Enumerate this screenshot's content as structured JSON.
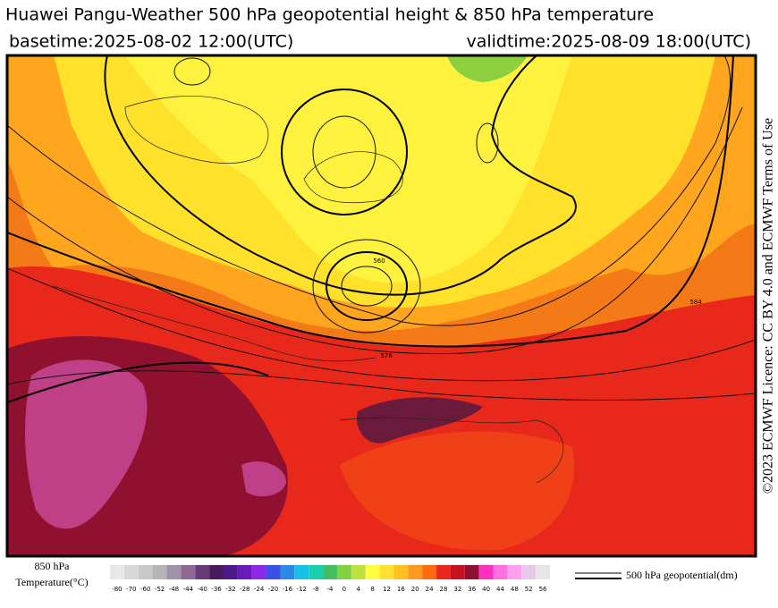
{
  "header": {
    "title": "Huawei Pangu-Weather 500 hPa geopotential height & 850 hPa temperature",
    "basetime": "basetime:2025-08-02 12:00(UTC)",
    "validtime": "validtime:2025-08-09 18:00(UTC)"
  },
  "credit": "©2023 ECMWF Licence: CC BY 4.0 and ECMWF Terms of Use",
  "map": {
    "contour_labels": [
      "560",
      "576",
      "584"
    ]
  },
  "colorbar": {
    "title_line1": "850 hPa",
    "title_line2": "Temperature(°C)",
    "ticks": [
      -80,
      -70,
      -60,
      -52,
      -48,
      -44,
      -40,
      -36,
      -32,
      -28,
      -24,
      -20,
      -16,
      -12,
      -8,
      -4,
      0,
      4,
      8,
      12,
      16,
      20,
      24,
      28,
      32,
      36,
      40,
      44,
      48,
      52,
      56
    ],
    "colors": [
      "#e8e8e8",
      "#d8d8d8",
      "#c8c8c8",
      "#b4b4b4",
      "#a090a8",
      "#8c6a94",
      "#6a3a78",
      "#4a1a5e",
      "#4a1a8a",
      "#6a1ab8",
      "#8a2ae6",
      "#3a50e6",
      "#2a8ae6",
      "#18c0e6",
      "#18d0b0",
      "#40c060",
      "#80d040",
      "#c0e040",
      "#ffff40",
      "#ffe030",
      "#ffc020",
      "#ff9a20",
      "#ff6a10",
      "#e8281a",
      "#c81020",
      "#901030",
      "#ff30c0",
      "#ff70e0",
      "#ffa0f0",
      "#e8c8e8",
      "#e6e6e6"
    ]
  },
  "legend": {
    "label": "500 hPa geopotential(dm)"
  }
}
